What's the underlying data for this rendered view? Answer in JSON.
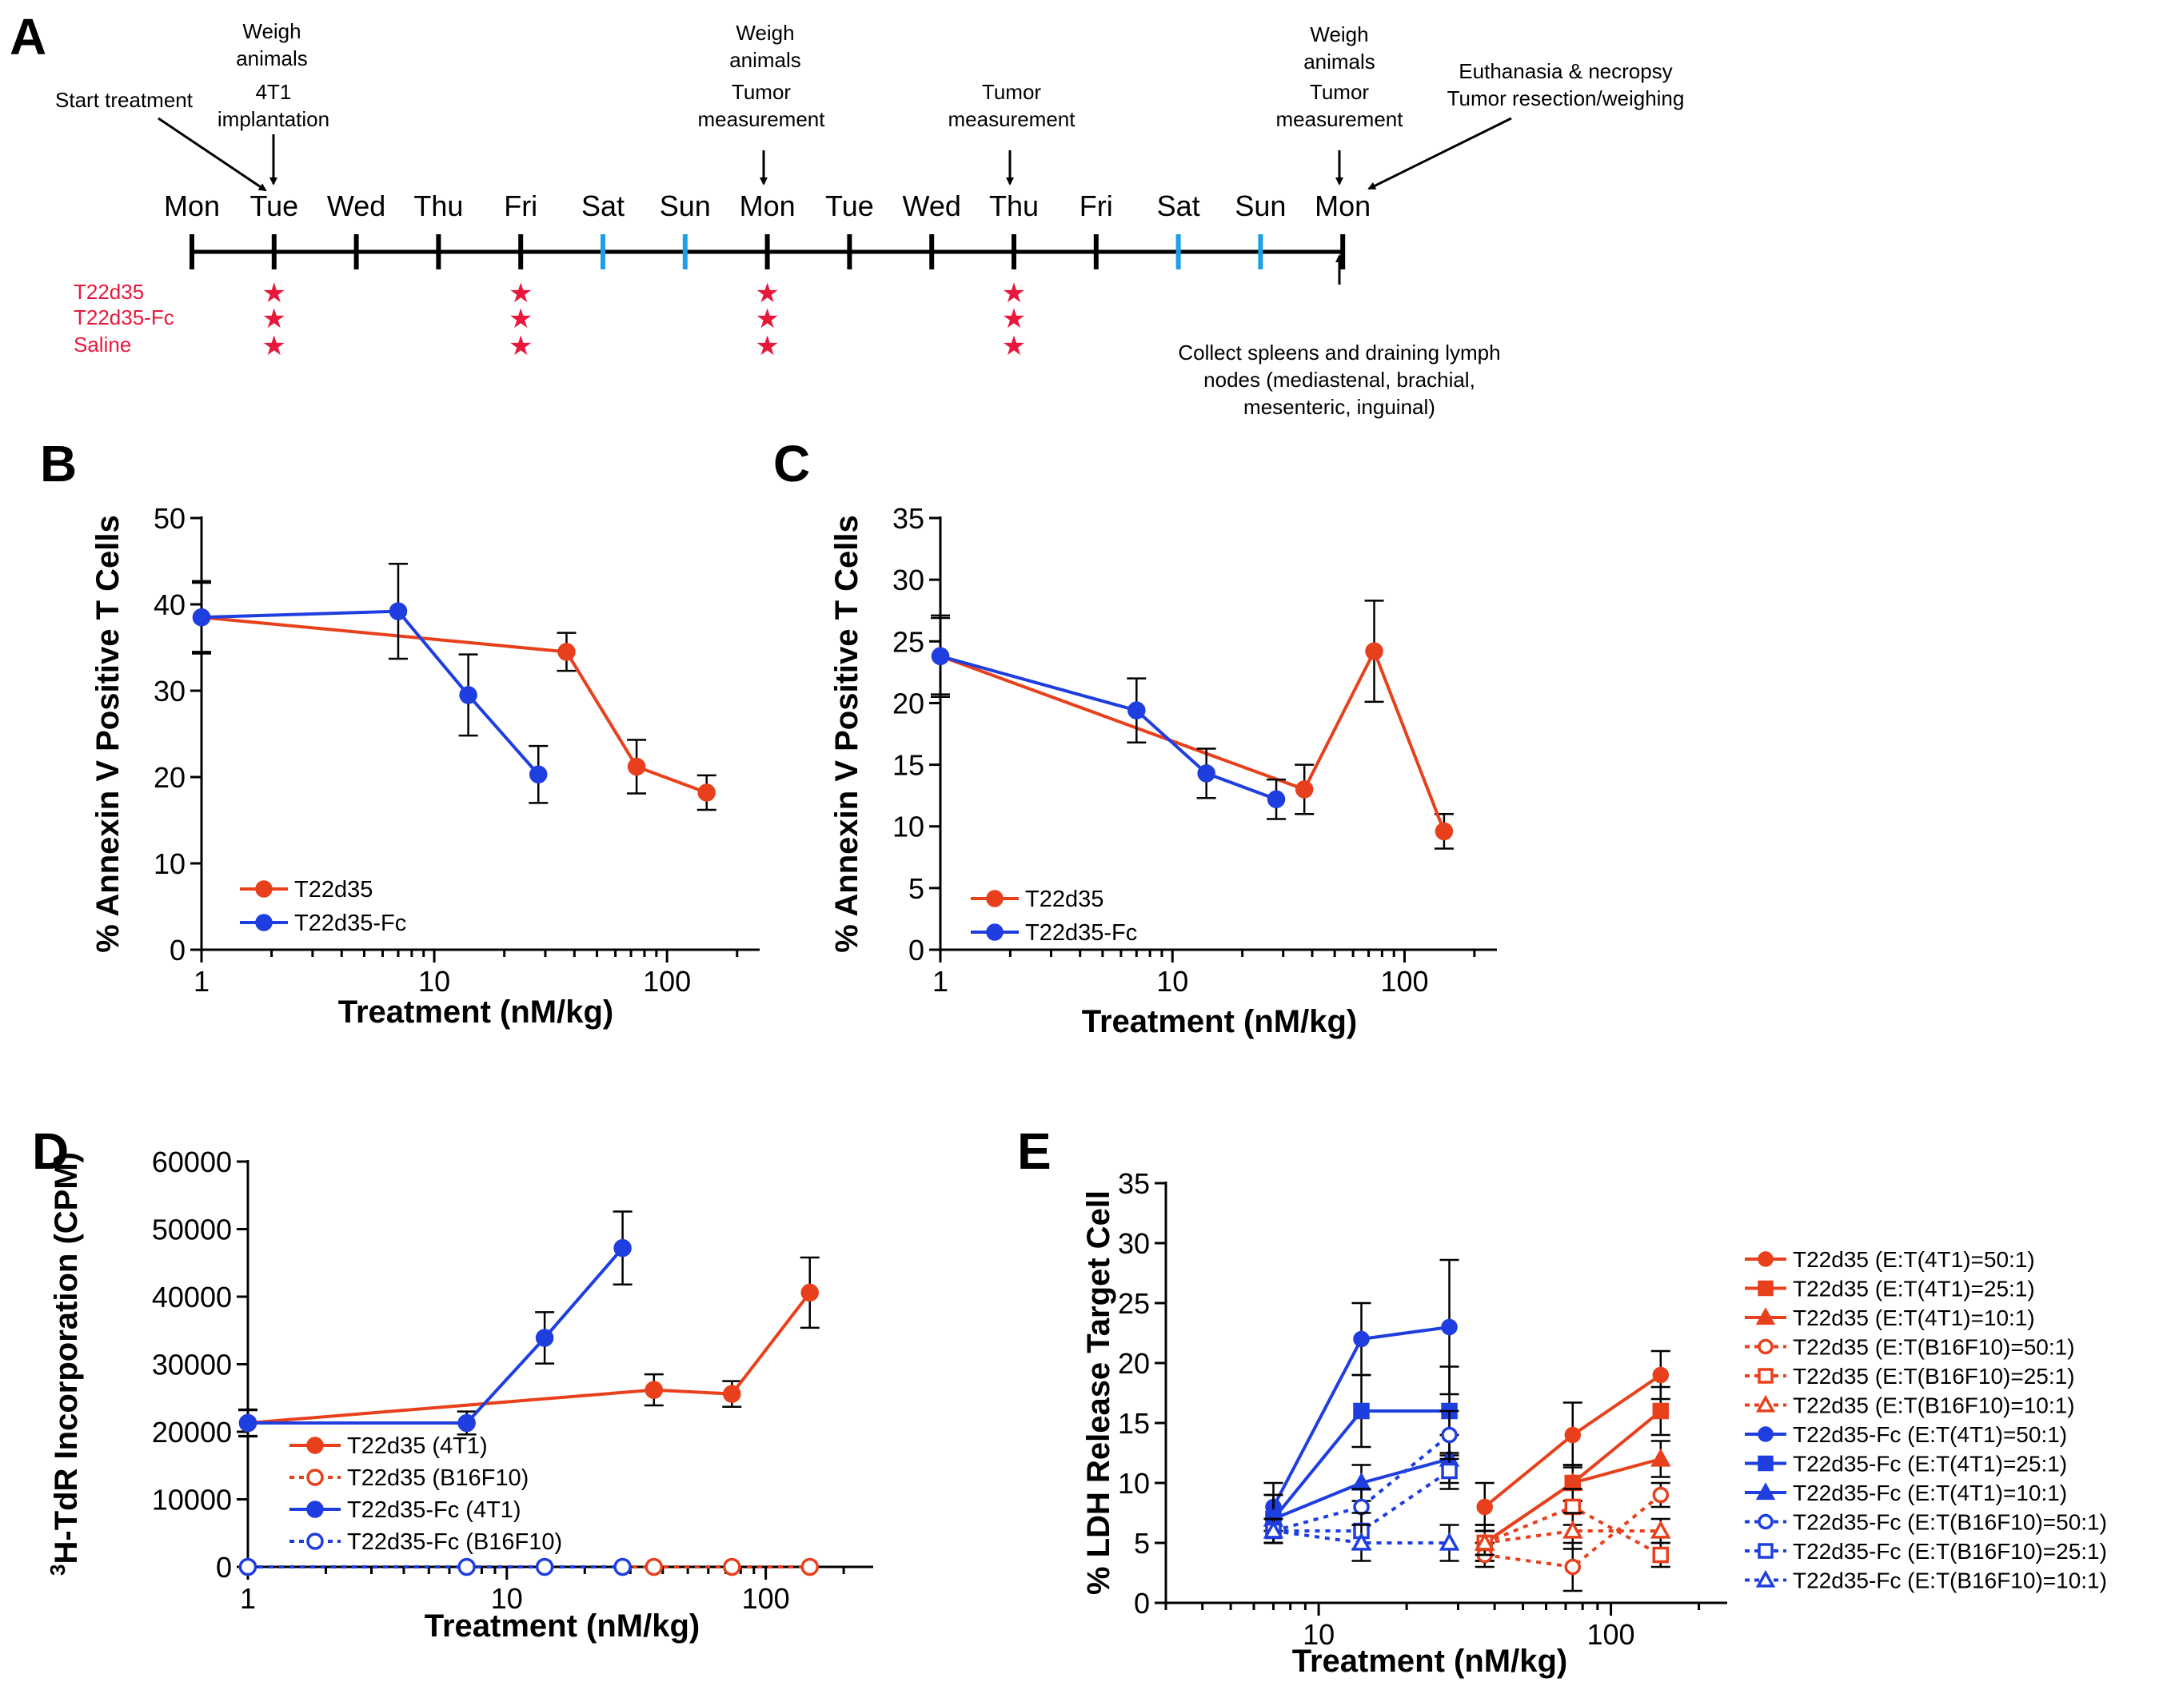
{
  "colors": {
    "red": "#e8401c",
    "blue": "#1f3ee0",
    "weekend": "#1ea0e6",
    "star": "#e8183c"
  },
  "timeline": {
    "panel_label": "A",
    "days": [
      "Mon",
      "Tue",
      "Wed",
      "Thu",
      "Fri",
      "Sat",
      "Sun",
      "Mon",
      "Tue",
      "Wed",
      "Thu",
      "Fri",
      "Sat",
      "Sun",
      "Mon"
    ],
    "weekend_flags": [
      false,
      false,
      false,
      false,
      false,
      true,
      true,
      false,
      false,
      false,
      false,
      false,
      true,
      true,
      false
    ],
    "groups": [
      "T22d35",
      "T22d35-Fc",
      "Saline"
    ],
    "dose_day_indices": [
      1,
      4,
      7,
      10
    ],
    "ann": {
      "start_treatment": "Start treatment",
      "weigh1": "Weigh",
      "weigh2": "animals",
      "impl1": "4T1",
      "impl2": "implantation",
      "tumor1": "Tumor",
      "tumor2": "measurement",
      "euth1": "Euthanasia & necropsy",
      "euth2": "Tumor resection/weighing",
      "collect1": "Collect spleens and draining lymph",
      "collect2": "nodes (mediastenal, brachial,",
      "collect3": "mesenteric, inguinal)"
    }
  },
  "chart_data": [
    {
      "id": "B",
      "panel_label": "B",
      "type": "line",
      "xscale": "log",
      "xlim": [
        1,
        250
      ],
      "ylim": [
        0,
        50
      ],
      "yticks": [
        0,
        10,
        20,
        30,
        40,
        50
      ],
      "xticks": [
        1,
        10,
        100
      ],
      "xticklabels": [
        "1",
        "10",
        "100"
      ],
      "xlabel": "Treatment (nM/kg)",
      "ylabel": "% Annexin V Positive T Cells",
      "legend_position": "bottom-left",
      "series": [
        {
          "name": "T22d35",
          "color": "red",
          "marker": "circle",
          "filled": true,
          "dash": false,
          "x": [
            1,
            37,
            74,
            148
          ],
          "y": [
            38.5,
            34.5,
            21.2,
            18.2
          ],
          "err": [
            4.2,
            2.2,
            3.1,
            2.0
          ]
        },
        {
          "name": "T22d35-Fc",
          "color": "blue",
          "marker": "circle",
          "filled": true,
          "dash": false,
          "x": [
            1,
            7,
            14,
            28
          ],
          "y": [
            38.5,
            39.2,
            29.5,
            20.3
          ],
          "err": [
            4.0,
            5.5,
            4.7,
            3.3
          ]
        }
      ]
    },
    {
      "id": "C",
      "panel_label": "C",
      "type": "line",
      "xscale": "log",
      "xlim": [
        1,
        250
      ],
      "ylim": [
        0,
        35
      ],
      "yticks": [
        0,
        5,
        10,
        15,
        20,
        25,
        30,
        35
      ],
      "xticks": [
        1,
        10,
        100
      ],
      "xticklabels": [
        "1",
        "10",
        "100"
      ],
      "xlabel": "Treatment (nM/kg)",
      "ylabel": "% Annexin V Positive T Cells",
      "legend_position": "bottom-left",
      "series": [
        {
          "name": "T22d35",
          "color": "red",
          "marker": "circle",
          "filled": true,
          "dash": false,
          "x": [
            1,
            37,
            74,
            148
          ],
          "y": [
            23.8,
            13.0,
            24.2,
            9.6
          ],
          "err": [
            3.3,
            2.0,
            4.1,
            1.4
          ]
        },
        {
          "name": "T22d35-Fc",
          "color": "blue",
          "marker": "circle",
          "filled": true,
          "dash": false,
          "x": [
            1,
            7,
            14,
            28
          ],
          "y": [
            23.8,
            19.4,
            14.3,
            12.2
          ],
          "err": [
            3.1,
            2.6,
            2.0,
            1.6
          ]
        }
      ]
    },
    {
      "id": "D",
      "panel_label": "D",
      "type": "line",
      "xscale": "log",
      "xlim": [
        1,
        260
      ],
      "ylim": [
        0,
        60000
      ],
      "yticks": [
        0,
        10000,
        20000,
        30000,
        40000,
        50000,
        60000
      ],
      "xticks": [
        1,
        10,
        100
      ],
      "xticklabels": [
        "1",
        "10",
        "100"
      ],
      "xlabel": "Treatment (nM/kg)",
      "ylabel_sup": "3",
      "ylabel": "H-TdR Incorporation (CPM)",
      "legend_position": "bottom-left",
      "series": [
        {
          "name": "T22d35 (4T1)",
          "color": "red",
          "marker": "circle",
          "filled": true,
          "dash": false,
          "x": [
            1,
            37,
            74,
            148
          ],
          "y": [
            21300,
            26200,
            25600,
            40600
          ],
          "err": [
            2000,
            2300,
            1900,
            5200
          ]
        },
        {
          "name": "T22d35 (B16F10)",
          "color": "red",
          "marker": "circle",
          "filled": false,
          "dash": true,
          "x": [
            1,
            37,
            74,
            148
          ],
          "y": [
            0,
            0,
            0,
            0
          ],
          "err": [
            0,
            0,
            0,
            0
          ]
        },
        {
          "name": "T22d35-Fc (4T1)",
          "color": "blue",
          "marker": "circle",
          "filled": true,
          "dash": false,
          "x": [
            1,
            7,
            14,
            28
          ],
          "y": [
            21300,
            21300,
            33900,
            47200
          ],
          "err": [
            1900,
            1700,
            3800,
            5400
          ]
        },
        {
          "name": "T22d35-Fc (B16F10)",
          "color": "blue",
          "marker": "circle",
          "filled": false,
          "dash": true,
          "x": [
            1,
            7,
            14,
            28
          ],
          "y": [
            0,
            0,
            0,
            0
          ],
          "err": [
            0,
            0,
            0,
            0
          ]
        }
      ]
    },
    {
      "id": "E",
      "panel_label": "E",
      "type": "line",
      "xscale": "log",
      "xlim": [
        3,
        250
      ],
      "ylim": [
        0,
        35
      ],
      "yticks": [
        0,
        5,
        10,
        15,
        20,
        25,
        30,
        35
      ],
      "xticks": [
        10,
        100
      ],
      "xticklabels": [
        "10",
        "100"
      ],
      "xlabel": "Treatment (nM/kg)",
      "ylabel": "% LDH Release Target Cell",
      "legend_position": "right",
      "series": [
        {
          "name": "T22d35 (E:T(4T1)=50:1)",
          "color": "red",
          "marker": "circle",
          "filled": true,
          "dash": false,
          "x": [
            37,
            74,
            148
          ],
          "y": [
            8,
            14,
            19
          ],
          "err": [
            2,
            2.7,
            2
          ]
        },
        {
          "name": "T22d35 (E:T(4T1)=25:1)",
          "color": "red",
          "marker": "square",
          "filled": true,
          "dash": false,
          "x": [
            37,
            74,
            148
          ],
          "y": [
            5,
            10,
            16
          ],
          "err": [
            1.5,
            1.5,
            2
          ]
        },
        {
          "name": "T22d35 (E:T(4T1)=10:1)",
          "color": "red",
          "marker": "triangle",
          "filled": true,
          "dash": false,
          "x": [
            37,
            74,
            148
          ],
          "y": [
            5,
            10,
            12
          ],
          "err": [
            1.5,
            1.5,
            1.5
          ]
        },
        {
          "name": "T22d35 (E:T(B16F10)=50:1)",
          "color": "red",
          "marker": "circle",
          "filled": false,
          "dash": true,
          "x": [
            37,
            74,
            148
          ],
          "y": [
            4,
            3,
            9
          ],
          "err": [
            1,
            2,
            1
          ]
        },
        {
          "name": "T22d35 (E:T(B16F10)=25:1)",
          "color": "red",
          "marker": "square",
          "filled": false,
          "dash": true,
          "x": [
            37,
            74,
            148
          ],
          "y": [
            5,
            8,
            4
          ],
          "err": [
            1,
            1.5,
            1
          ]
        },
        {
          "name": "T22d35 (E:T(B16F10)=10:1)",
          "color": "red",
          "marker": "triangle",
          "filled": false,
          "dash": true,
          "x": [
            37,
            74,
            148
          ],
          "y": [
            5,
            6,
            6
          ],
          "err": [
            1,
            1.5,
            1
          ]
        },
        {
          "name": "T22d35-Fc (E:T(4T1)=50:1)",
          "color": "blue",
          "marker": "circle",
          "filled": true,
          "dash": false,
          "x": [
            7,
            14,
            28
          ],
          "y": [
            8,
            22,
            23
          ],
          "err": [
            2,
            3,
            5.6
          ]
        },
        {
          "name": "T22d35-Fc (E:T(4T1)=25:1)",
          "color": "blue",
          "marker": "square",
          "filled": true,
          "dash": false,
          "x": [
            7,
            14,
            28
          ],
          "y": [
            7,
            16,
            16
          ],
          "err": [
            2,
            3,
            3.7
          ]
        },
        {
          "name": "T22d35-Fc (E:T(4T1)=10:1)",
          "color": "blue",
          "marker": "triangle",
          "filled": true,
          "dash": false,
          "x": [
            7,
            14,
            28
          ],
          "y": [
            7,
            10,
            12
          ],
          "err": [
            2,
            1.5,
            2
          ]
        },
        {
          "name": "T22d35-Fc (E:T(B16F10)=50:1)",
          "color": "blue",
          "marker": "circle",
          "filled": false,
          "dash": true,
          "x": [
            7,
            14,
            28
          ],
          "y": [
            6,
            8,
            14
          ],
          "err": [
            1,
            1.5,
            2
          ]
        },
        {
          "name": "T22d35-Fc (E:T(B16F10)=25:1)",
          "color": "blue",
          "marker": "square",
          "filled": false,
          "dash": true,
          "x": [
            7,
            14,
            28
          ],
          "y": [
            6,
            6,
            11
          ],
          "err": [
            1,
            1.5,
            1.5
          ]
        },
        {
          "name": "T22d35-Fc (E:T(B16F10)=10:1)",
          "color": "blue",
          "marker": "triangle",
          "filled": false,
          "dash": true,
          "x": [
            7,
            14,
            28
          ],
          "y": [
            6,
            5,
            5
          ],
          "err": [
            1,
            1.5,
            1.5
          ]
        }
      ]
    }
  ]
}
